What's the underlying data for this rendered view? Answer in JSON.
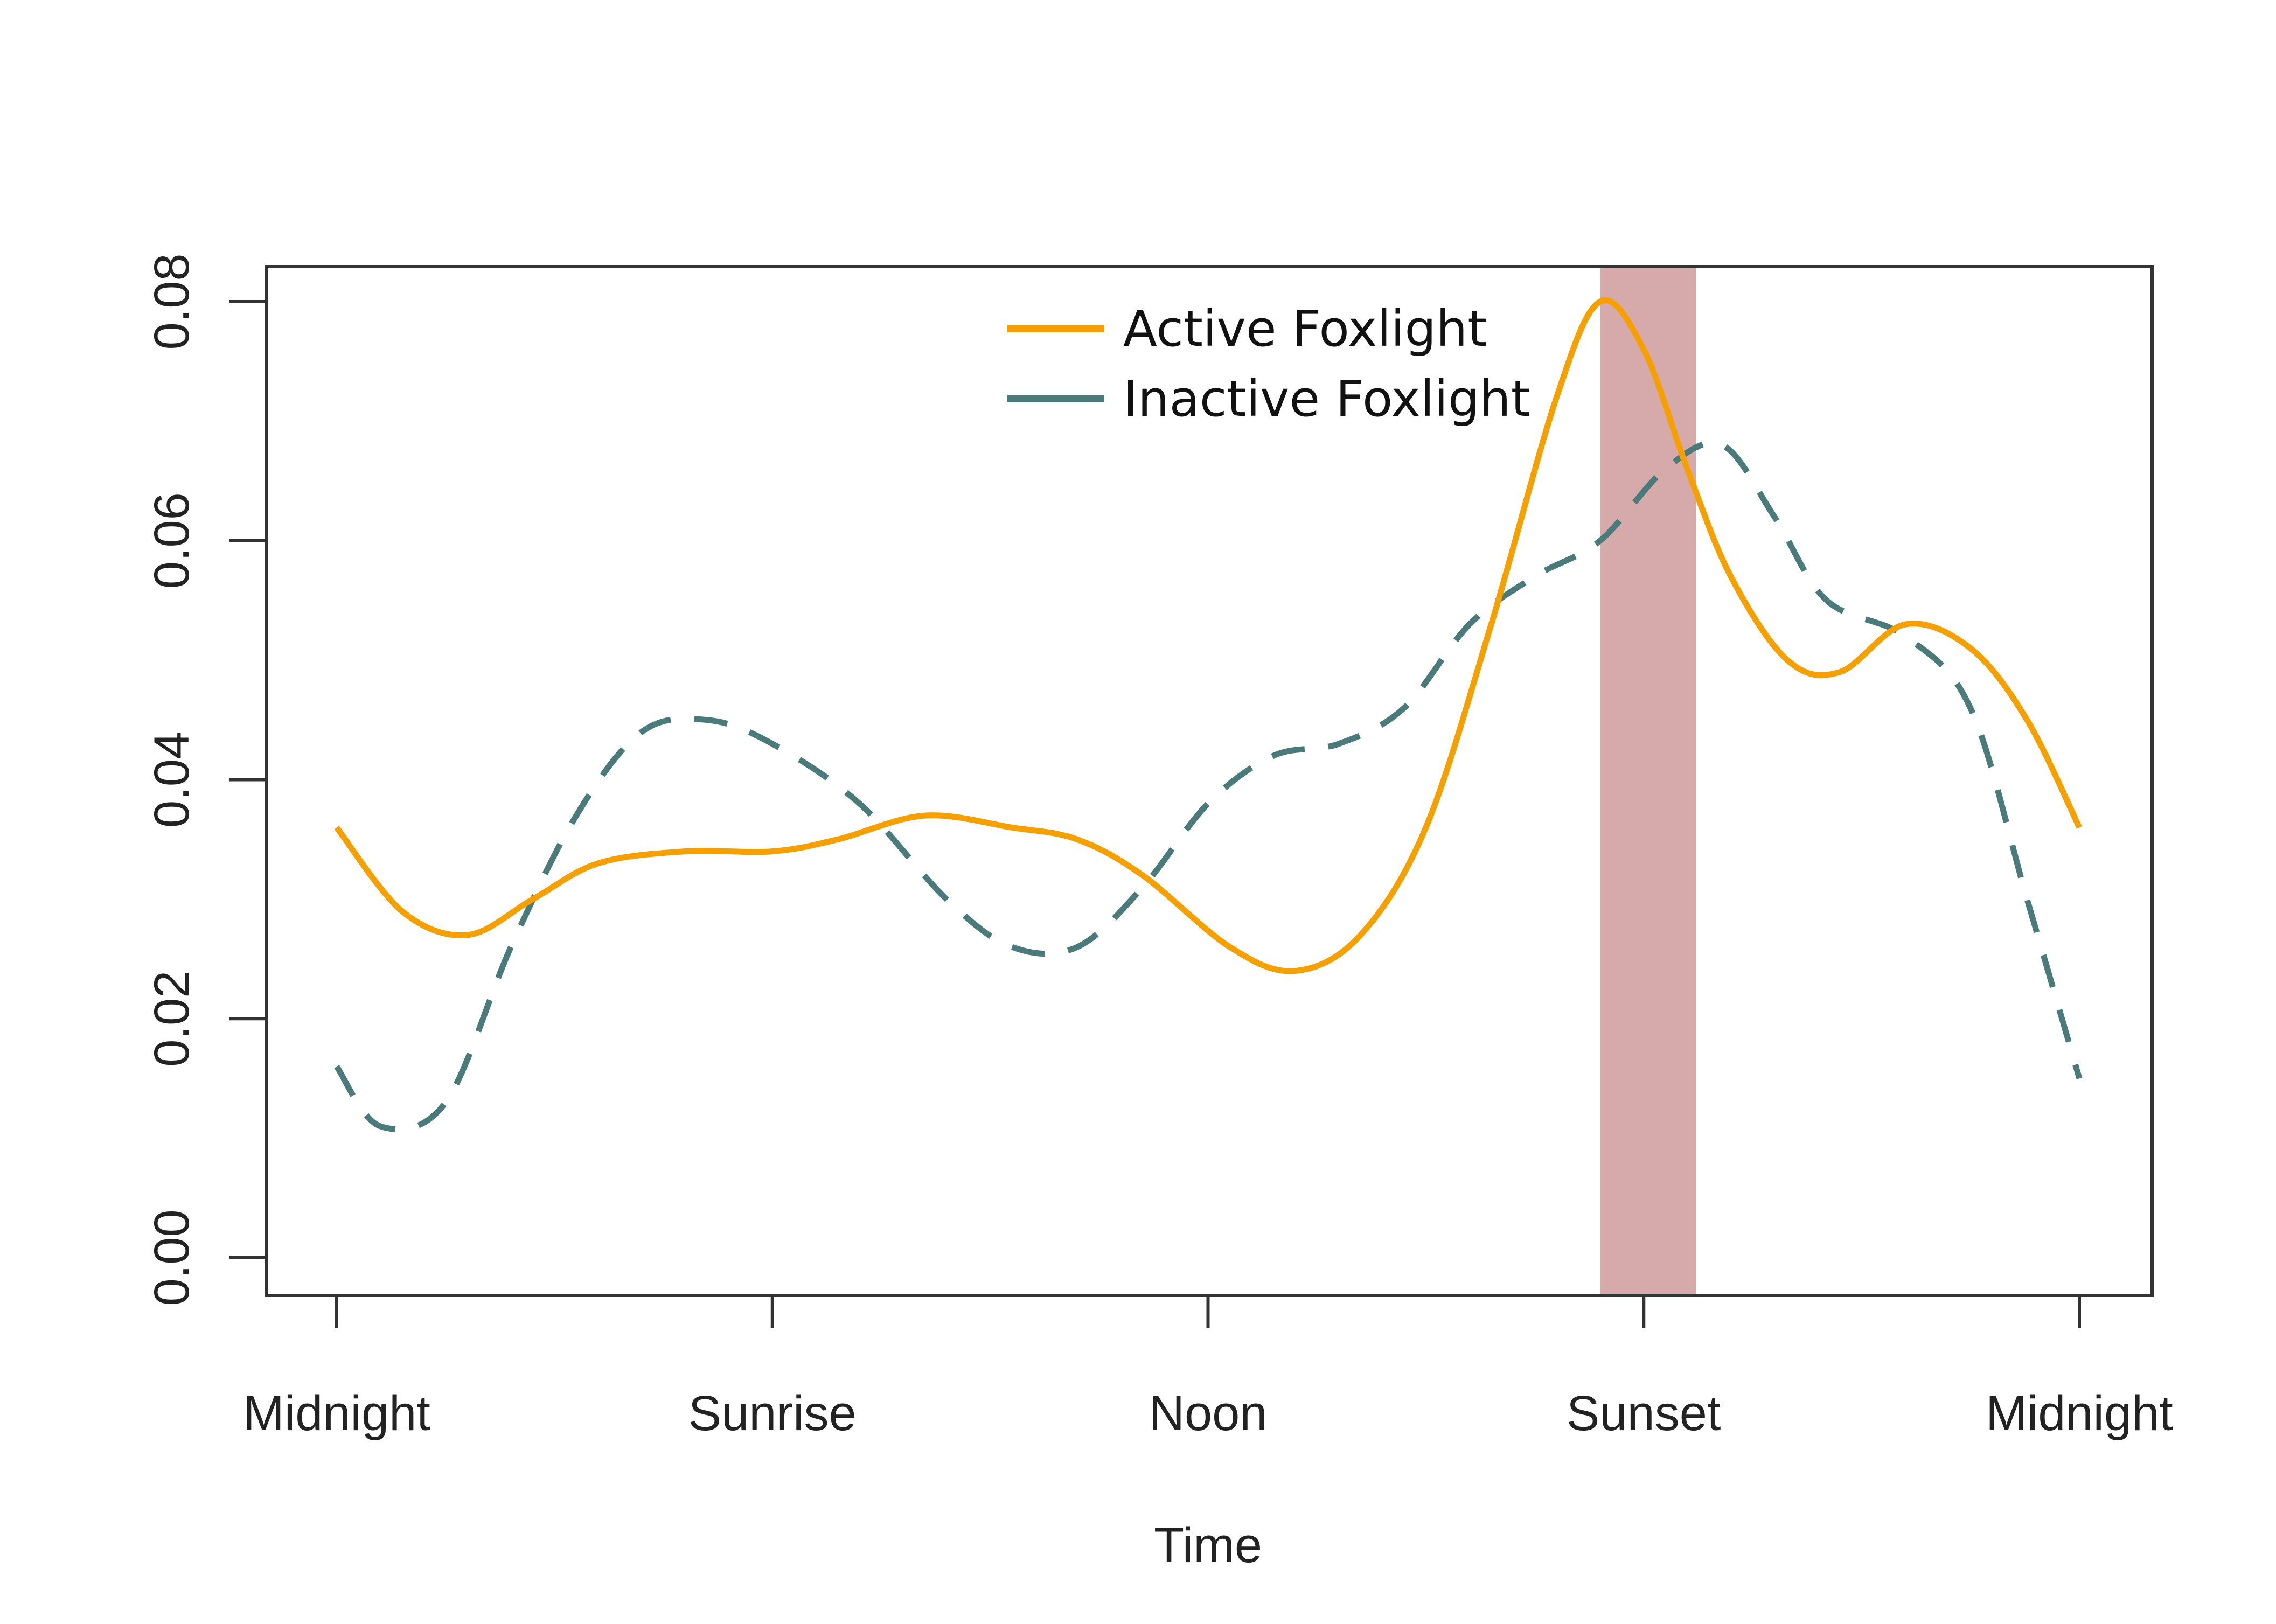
{
  "chart_data": {
    "type": "line",
    "xlabel": "Time",
    "ylabel": "",
    "ylim": [
      0,
      0.086
    ],
    "xlim": [
      0,
      4
    ],
    "x_ticks": [
      {
        "value": 0,
        "label": "Midnight"
      },
      {
        "value": 1,
        "label": "Sunrise"
      },
      {
        "value": 2,
        "label": "Noon"
      },
      {
        "value": 3,
        "label": "Sunset"
      },
      {
        "value": 4,
        "label": "Midnight"
      }
    ],
    "y_ticks": [
      {
        "value": 0.0,
        "label": "0.00"
      },
      {
        "value": 0.02,
        "label": "0.02"
      },
      {
        "value": 0.04,
        "label": "0.04"
      },
      {
        "value": 0.06,
        "label": "0.06"
      },
      {
        "value": 0.08,
        "label": "0.08"
      }
    ],
    "highlight_band": {
      "x_start": 2.9,
      "x_end": 3.12,
      "color": "#d6a9aa"
    },
    "legend_position": "top-center",
    "series": [
      {
        "name": "Active Foxlight",
        "color": "#f6a000",
        "dash": "solid",
        "points": [
          [
            0.0,
            0.036
          ],
          [
            0.15,
            0.029
          ],
          [
            0.3,
            0.027
          ],
          [
            0.45,
            0.03
          ],
          [
            0.6,
            0.033
          ],
          [
            0.8,
            0.034
          ],
          [
            1.0,
            0.034
          ],
          [
            1.15,
            0.035
          ],
          [
            1.35,
            0.037
          ],
          [
            1.55,
            0.036
          ],
          [
            1.7,
            0.035
          ],
          [
            1.85,
            0.032
          ],
          [
            2.05,
            0.026
          ],
          [
            2.2,
            0.024
          ],
          [
            2.35,
            0.027
          ],
          [
            2.5,
            0.036
          ],
          [
            2.65,
            0.053
          ],
          [
            2.8,
            0.072
          ],
          [
            2.9,
            0.08
          ],
          [
            3.0,
            0.076
          ],
          [
            3.1,
            0.066
          ],
          [
            3.2,
            0.057
          ],
          [
            3.33,
            0.05
          ],
          [
            3.45,
            0.049
          ],
          [
            3.6,
            0.053
          ],
          [
            3.75,
            0.051
          ],
          [
            3.88,
            0.045
          ],
          [
            4.0,
            0.036
          ]
        ]
      },
      {
        "name": "Inactive Foxlight",
        "color": "#4a7b7a",
        "dash": "dashed",
        "points": [
          [
            0.0,
            0.016
          ],
          [
            0.1,
            0.011
          ],
          [
            0.25,
            0.013
          ],
          [
            0.4,
            0.026
          ],
          [
            0.55,
            0.037
          ],
          [
            0.7,
            0.044
          ],
          [
            0.85,
            0.045
          ],
          [
            1.0,
            0.043
          ],
          [
            1.2,
            0.038
          ],
          [
            1.4,
            0.03
          ],
          [
            1.55,
            0.026
          ],
          [
            1.7,
            0.026
          ],
          [
            1.85,
            0.031
          ],
          [
            2.0,
            0.038
          ],
          [
            2.15,
            0.042
          ],
          [
            2.3,
            0.043
          ],
          [
            2.45,
            0.046
          ],
          [
            2.6,
            0.053
          ],
          [
            2.75,
            0.057
          ],
          [
            2.9,
            0.06
          ],
          [
            3.05,
            0.066
          ],
          [
            3.18,
            0.068
          ],
          [
            3.3,
            0.062
          ],
          [
            3.42,
            0.055
          ],
          [
            3.6,
            0.052
          ],
          [
            3.75,
            0.046
          ],
          [
            3.88,
            0.03
          ],
          [
            4.0,
            0.015
          ]
        ]
      }
    ]
  }
}
